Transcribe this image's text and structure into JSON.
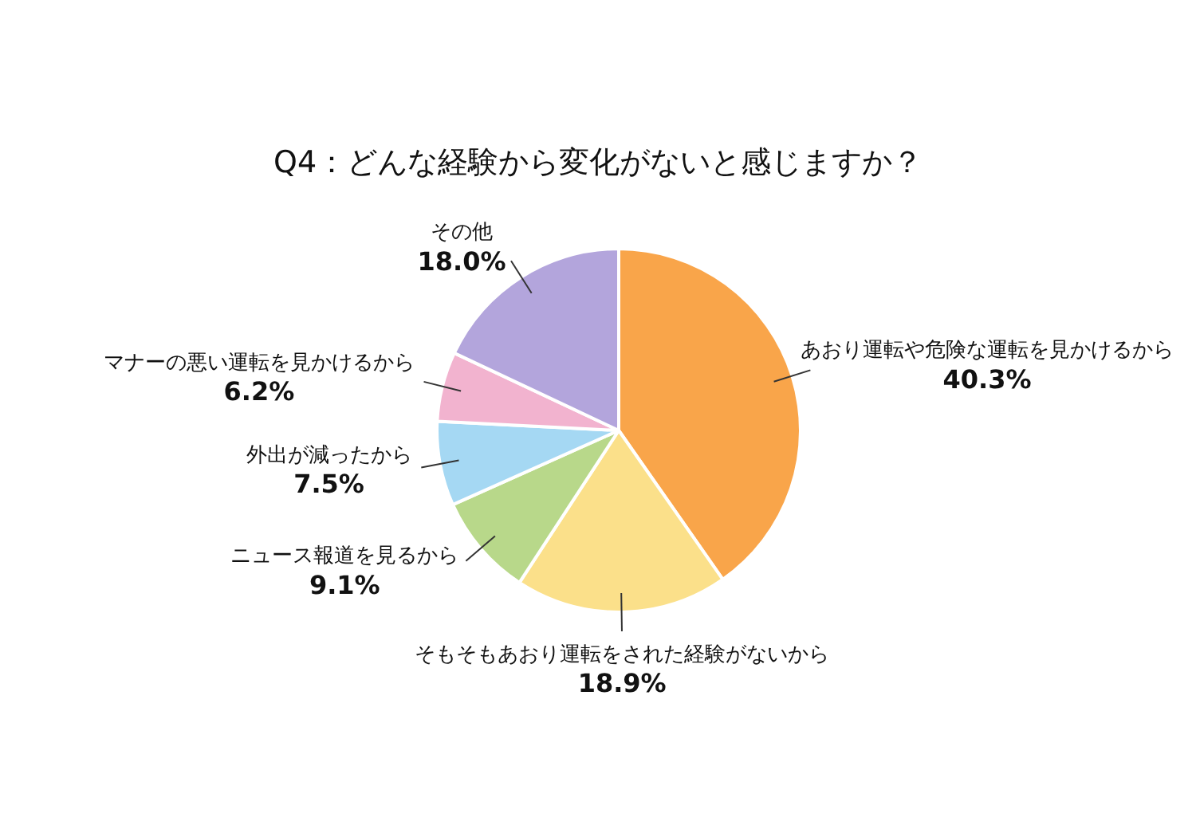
{
  "chart_data": {
    "type": "pie",
    "title": "Q4：どんな経験から変化がないと感じますか？",
    "categories": [
      "あおり運転や危険な運転を見かけるから",
      "そもそもあおり運転をされた経験がないから",
      "ニュース報道を見るから",
      "外出が減ったから",
      "マナーの悪い運転を見かけるから",
      "その他"
    ],
    "values": [
      40.3,
      18.9,
      9.1,
      7.5,
      6.2,
      18.0
    ],
    "value_labels": [
      "40.3%",
      "18.9%",
      "9.1%",
      "7.5%",
      "6.2%",
      "18.0%"
    ],
    "colors": [
      "#f9a54a",
      "#fbe08a",
      "#b8d88a",
      "#a5d8f3",
      "#f2b3cf",
      "#b3a5dc"
    ],
    "legend": false
  }
}
